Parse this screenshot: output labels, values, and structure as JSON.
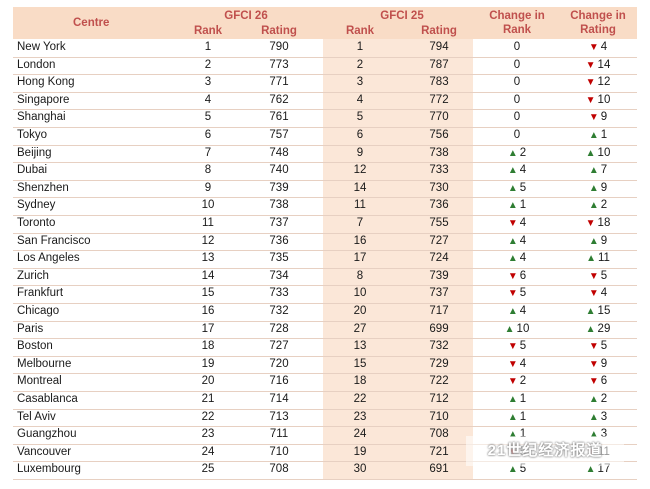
{
  "headers": {
    "centre": "Centre",
    "gfci26": "GFCI 26",
    "gfci25": "GFCI 25",
    "rank": "Rank",
    "rating": "Rating",
    "change_rank": "Change in Rank",
    "change_rating": "Change in Rating"
  },
  "rows": [
    {
      "centre": "New York",
      "r26": "1",
      "g26": "790",
      "r25": "1",
      "g25": "794",
      "cr": "0",
      "cr_dir": "none",
      "cg": "4",
      "cg_dir": "down"
    },
    {
      "centre": "London",
      "r26": "2",
      "g26": "773",
      "r25": "2",
      "g25": "787",
      "cr": "0",
      "cr_dir": "none",
      "cg": "14",
      "cg_dir": "down"
    },
    {
      "centre": "Hong Kong",
      "r26": "3",
      "g26": "771",
      "r25": "3",
      "g25": "783",
      "cr": "0",
      "cr_dir": "none",
      "cg": "12",
      "cg_dir": "down"
    },
    {
      "centre": "Singapore",
      "r26": "4",
      "g26": "762",
      "r25": "4",
      "g25": "772",
      "cr": "0",
      "cr_dir": "none",
      "cg": "10",
      "cg_dir": "down"
    },
    {
      "centre": "Shanghai",
      "r26": "5",
      "g26": "761",
      "r25": "5",
      "g25": "770",
      "cr": "0",
      "cr_dir": "none",
      "cg": "9",
      "cg_dir": "down"
    },
    {
      "centre": "Tokyo",
      "r26": "6",
      "g26": "757",
      "r25": "6",
      "g25": "756",
      "cr": "0",
      "cr_dir": "none",
      "cg": "1",
      "cg_dir": "up"
    },
    {
      "centre": "Beijing",
      "r26": "7",
      "g26": "748",
      "r25": "9",
      "g25": "738",
      "cr": "2",
      "cr_dir": "up",
      "cg": "10",
      "cg_dir": "up"
    },
    {
      "centre": "Dubai",
      "r26": "8",
      "g26": "740",
      "r25": "12",
      "g25": "733",
      "cr": "4",
      "cr_dir": "up",
      "cg": "7",
      "cg_dir": "up"
    },
    {
      "centre": "Shenzhen",
      "r26": "9",
      "g26": "739",
      "r25": "14",
      "g25": "730",
      "cr": "5",
      "cr_dir": "up",
      "cg": "9",
      "cg_dir": "up"
    },
    {
      "centre": "Sydney",
      "r26": "10",
      "g26": "738",
      "r25": "11",
      "g25": "736",
      "cr": "1",
      "cr_dir": "up",
      "cg": "2",
      "cg_dir": "up"
    },
    {
      "centre": "Toronto",
      "r26": "11",
      "g26": "737",
      "r25": "7",
      "g25": "755",
      "cr": "4",
      "cr_dir": "down",
      "cg": "18",
      "cg_dir": "down"
    },
    {
      "centre": "San Francisco",
      "r26": "12",
      "g26": "736",
      "r25": "16",
      "g25": "727",
      "cr": "4",
      "cr_dir": "up",
      "cg": "9",
      "cg_dir": "up"
    },
    {
      "centre": "Los Angeles",
      "r26": "13",
      "g26": "735",
      "r25": "17",
      "g25": "724",
      "cr": "4",
      "cr_dir": "up",
      "cg": "11",
      "cg_dir": "up"
    },
    {
      "centre": "Zurich",
      "r26": "14",
      "g26": "734",
      "r25": "8",
      "g25": "739",
      "cr": "6",
      "cr_dir": "down",
      "cg": "5",
      "cg_dir": "down"
    },
    {
      "centre": "Frankfurt",
      "r26": "15",
      "g26": "733",
      "r25": "10",
      "g25": "737",
      "cr": "5",
      "cr_dir": "down",
      "cg": "4",
      "cg_dir": "down"
    },
    {
      "centre": "Chicago",
      "r26": "16",
      "g26": "732",
      "r25": "20",
      "g25": "717",
      "cr": "4",
      "cr_dir": "up",
      "cg": "15",
      "cg_dir": "up"
    },
    {
      "centre": "Paris",
      "r26": "17",
      "g26": "728",
      "r25": "27",
      "g25": "699",
      "cr": "10",
      "cr_dir": "up",
      "cg": "29",
      "cg_dir": "up"
    },
    {
      "centre": "Boston",
      "r26": "18",
      "g26": "727",
      "r25": "13",
      "g25": "732",
      "cr": "5",
      "cr_dir": "down",
      "cg": "5",
      "cg_dir": "down"
    },
    {
      "centre": "Melbourne",
      "r26": "19",
      "g26": "720",
      "r25": "15",
      "g25": "729",
      "cr": "4",
      "cr_dir": "down",
      "cg": "9",
      "cg_dir": "down"
    },
    {
      "centre": "Montreal",
      "r26": "20",
      "g26": "716",
      "r25": "18",
      "g25": "722",
      "cr": "2",
      "cr_dir": "down",
      "cg": "6",
      "cg_dir": "down"
    },
    {
      "centre": "Casablanca",
      "r26": "21",
      "g26": "714",
      "r25": "22",
      "g25": "712",
      "cr": "1",
      "cr_dir": "up",
      "cg": "2",
      "cg_dir": "up"
    },
    {
      "centre": "Tel Aviv",
      "r26": "22",
      "g26": "713",
      "r25": "23",
      "g25": "710",
      "cr": "1",
      "cr_dir": "up",
      "cg": "3",
      "cg_dir": "up"
    },
    {
      "centre": "Guangzhou",
      "r26": "23",
      "g26": "711",
      "r25": "24",
      "g25": "708",
      "cr": "1",
      "cr_dir": "up",
      "cg": "3",
      "cg_dir": "up"
    },
    {
      "centre": "Vancouver",
      "r26": "24",
      "g26": "710",
      "r25": "19",
      "g25": "721",
      "cr": "5",
      "cr_dir": "down",
      "cg": "11",
      "cg_dir": "down"
    },
    {
      "centre": "Luxembourg",
      "r26": "25",
      "g26": "708",
      "r25": "30",
      "g25": "691",
      "cr": "5",
      "cr_dir": "up",
      "cg": "17",
      "cg_dir": "up"
    }
  ],
  "watermark": "21世纪经济报道",
  "colors": {
    "header_text": "#c0504d",
    "up": "#2e7d32",
    "down": "#c00000",
    "header_band": "#f9dcc6"
  }
}
